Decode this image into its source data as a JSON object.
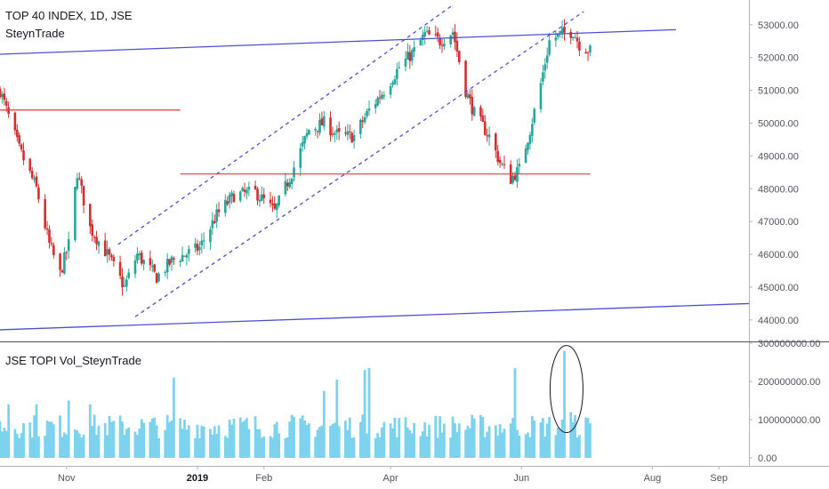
{
  "header": {
    "title": "TOP 40 INDEX, 1D, JSE",
    "author": "SteynTrade",
    "volume_title": "JSE TOPI Vol_SteynTrade"
  },
  "colors": {
    "up": "#26a69a",
    "down": "#d32f2f",
    "volume": "#7dd3ee",
    "trendline": "#4a4fd8",
    "support": "#e53935",
    "grid": "#e0e3eb"
  },
  "chart_data": [
    {
      "type": "candlestick",
      "title": "TOP 40 INDEX, 1D, JSE",
      "ylim": [
        43400,
        53700
      ],
      "y_ticks": [
        "53000.00",
        "52000.00",
        "51000.00",
        "50000.00",
        "49000.00",
        "48000.00",
        "47000.00",
        "46000.00",
        "45000.00",
        "44000.00"
      ],
      "x_ticks": [
        "Nov",
        "2019",
        "Feb",
        "Apr",
        "Jun",
        "Aug",
        "Sep"
      ],
      "x_ticks_bold": [
        "2019"
      ],
      "x_range": [
        "2018-10-01",
        "2019-09-15"
      ],
      "trend": [
        [
          "2018-10-01",
          51000
        ],
        [
          "2018-10-10",
          49200
        ],
        [
          "2018-10-18",
          48000
        ],
        [
          "2018-10-24",
          46300
        ],
        [
          "2018-10-29",
          45400
        ],
        [
          "2018-11-02",
          46300
        ],
        [
          "2018-11-06",
          48500
        ],
        [
          "2018-11-12",
          46800
        ],
        [
          "2018-11-20",
          46000
        ],
        [
          "2018-11-28",
          45000
        ],
        [
          "2018-12-04",
          46000
        ],
        [
          "2018-12-13",
          45300
        ],
        [
          "2018-12-20",
          45800
        ],
        [
          "2019-01-02",
          46200
        ],
        [
          "2019-01-10",
          47200
        ],
        [
          "2019-01-18",
          47800
        ],
        [
          "2019-01-28",
          47900
        ],
        [
          "2019-02-06",
          47300
        ],
        [
          "2019-02-14",
          48500
        ],
        [
          "2019-02-22",
          49800
        ],
        [
          "2019-03-01",
          50000
        ],
        [
          "2019-03-08",
          49600
        ],
        [
          "2019-03-15",
          49600
        ],
        [
          "2019-03-22",
          50400
        ],
        [
          "2019-03-29",
          51000
        ],
        [
          "2019-04-05",
          51700
        ],
        [
          "2019-04-12",
          52200
        ],
        [
          "2019-04-17",
          52700
        ],
        [
          "2019-04-24",
          52500
        ],
        [
          "2019-04-30",
          52800
        ],
        [
          "2019-05-06",
          51000
        ],
        [
          "2019-05-10",
          50300
        ],
        [
          "2019-05-17",
          49600
        ],
        [
          "2019-05-22",
          48800
        ],
        [
          "2019-05-27",
          48300
        ],
        [
          "2019-05-31",
          48600
        ],
        [
          "2019-06-05",
          49800
        ],
        [
          "2019-06-10",
          51200
        ],
        [
          "2019-06-14",
          52500
        ],
        [
          "2019-06-19",
          52700
        ],
        [
          "2019-06-25",
          52800
        ],
        [
          "2019-06-28",
          52400
        ],
        [
          "2019-07-03",
          52200
        ]
      ],
      "lines": [
        {
          "name": "upper-trend",
          "style": "solid",
          "from": [
            "2018-10-01",
            52100
          ],
          "to": [
            "2019-08-12",
            52850
          ]
        },
        {
          "name": "lower-trend",
          "style": "solid",
          "from": [
            "2018-10-01",
            43700
          ],
          "to": [
            "2019-09-15",
            44500
          ]
        },
        {
          "name": "channel-upper",
          "style": "dashed",
          "from": [
            "2018-11-25",
            46300
          ],
          "to": [
            "2019-04-30",
            53600
          ]
        },
        {
          "name": "channel-lower",
          "style": "dashed",
          "from": [
            "2018-12-03",
            44100
          ],
          "to": [
            "2019-06-30",
            53400
          ]
        },
        {
          "name": "resistance",
          "style": "solid",
          "from": [
            "2018-10-01",
            50400
          ],
          "to": [
            "2018-12-24",
            50400
          ]
        },
        {
          "name": "support",
          "style": "solid",
          "from": [
            "2018-12-24",
            48450
          ],
          "to": [
            "2019-07-03",
            48450
          ]
        }
      ]
    },
    {
      "type": "bar",
      "title": "JSE TOPI Vol_SteynTrade",
      "ylim": [
        0,
        300000000
      ],
      "y_ticks": [
        "300000000.00",
        "200000000.00",
        "100000000.00",
        "0.00"
      ],
      "base_volume": 85000000,
      "spikes": [
        [
          "2018-10-05",
          140000000
        ],
        [
          "2018-10-18",
          140000000
        ],
        [
          "2018-11-02",
          150000000
        ],
        [
          "2018-11-12",
          140000000
        ],
        [
          "2018-12-21",
          210000000
        ],
        [
          "2019-03-01",
          175000000
        ],
        [
          "2019-03-07",
          205000000
        ],
        [
          "2019-03-20",
          230000000
        ],
        [
          "2019-03-22",
          235000000
        ],
        [
          "2019-05-29",
          235000000
        ],
        [
          "2019-06-21",
          280000000
        ],
        [
          "2019-06-22",
          175000000
        ],
        [
          "2019-06-24",
          120000000
        ]
      ],
      "highlight": {
        "from": "2019-06-16",
        "to": "2019-06-28"
      }
    }
  ]
}
